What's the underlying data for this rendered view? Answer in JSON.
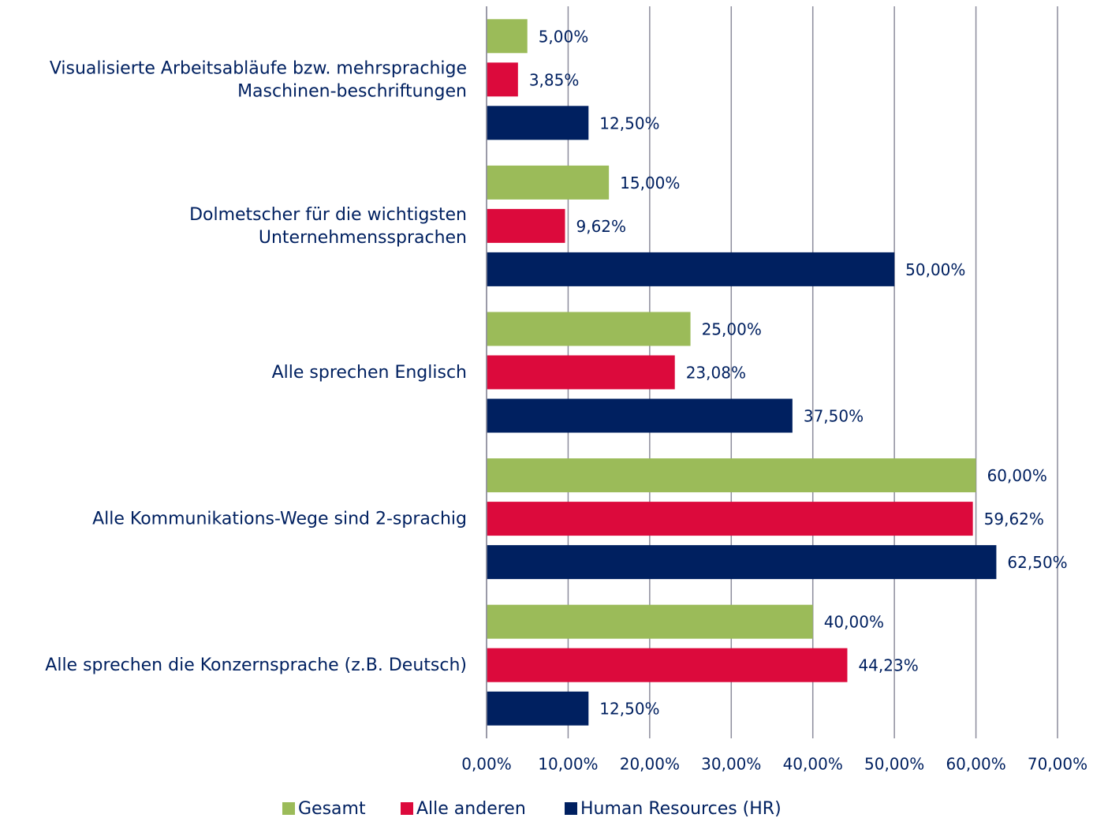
{
  "chart_data": {
    "type": "hbar",
    "categories": [
      [
        "Visualisierte Arbeitsabläufe bzw. mehrsprachige",
        "Maschinen-beschriftungen"
      ],
      [
        "Dolmetscher für die wichtigsten",
        "Unternehmenssprachen"
      ],
      [
        "Alle sprechen Englisch"
      ],
      [
        "Alle Kommunikations-Wege  sind 2-sprachig"
      ],
      [
        "Alle sprechen die Konzernsprache (z.B. Deutsch)"
      ]
    ],
    "series": [
      {
        "name": "Gesamt",
        "color": "#9bbb59",
        "values": [
          5,
          15,
          25,
          60,
          40
        ],
        "value_labels": [
          "5,00%",
          "15,00%",
          "25,00%",
          "60,00%",
          "40,00%"
        ]
      },
      {
        "name": "Alle anderen",
        "color": "#dc0a3c",
        "values": [
          3.85,
          9.62,
          23.08,
          59.62,
          44.23
        ],
        "value_labels": [
          "3,85%",
          "9,62%",
          "23,08%",
          "59,62%",
          "44,23%"
        ]
      },
      {
        "name": "Human Resources (HR)",
        "color": "#002060",
        "values": [
          12.5,
          50,
          37.5,
          62.5,
          12.5
        ],
        "value_labels": [
          "12,50%",
          "50,00%",
          "37,50%",
          "62,50%",
          "12,50%"
        ]
      }
    ],
    "xlim": [
      0,
      70
    ],
    "xticks": [
      {
        "value": 0,
        "label": "0,00%"
      },
      {
        "value": 10,
        "label": "10,00%"
      },
      {
        "value": 20,
        "label": "20,00%"
      },
      {
        "value": 30,
        "label": "30,00%"
      },
      {
        "value": 40,
        "label": "40,00%"
      },
      {
        "value": 50,
        "label": "50,00%"
      },
      {
        "value": 60,
        "label": "60,00%"
      },
      {
        "value": 70,
        "label": "70,00%"
      }
    ],
    "grid": true,
    "legend": "bottom"
  }
}
